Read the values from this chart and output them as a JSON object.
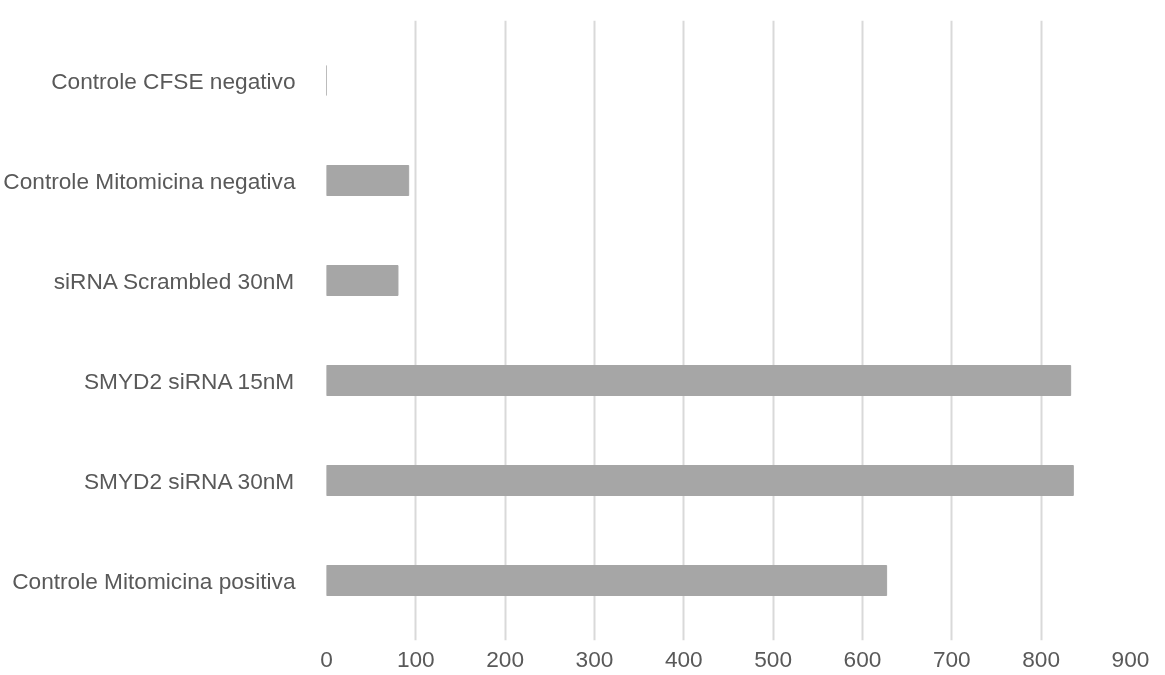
{
  "chart_data": {
    "type": "bar",
    "orientation": "horizontal",
    "categories": [
      "Controle CFSE negativo",
      "Controle Mitomicina negativa",
      "siRNA Scrambled 30nM",
      "SMYD2 siRNA 15nM",
      "SMYD2 siRNA 30nM",
      "Controle Mitomicina positiva"
    ],
    "values": [
      0,
      92,
      80,
      833,
      836,
      627
    ],
    "color": "#a6a6a6",
    "xlim": [
      0,
      900
    ],
    "xticks": [
      0,
      100,
      200,
      300,
      400,
      500,
      600,
      700,
      800,
      900
    ],
    "grid": "x"
  }
}
